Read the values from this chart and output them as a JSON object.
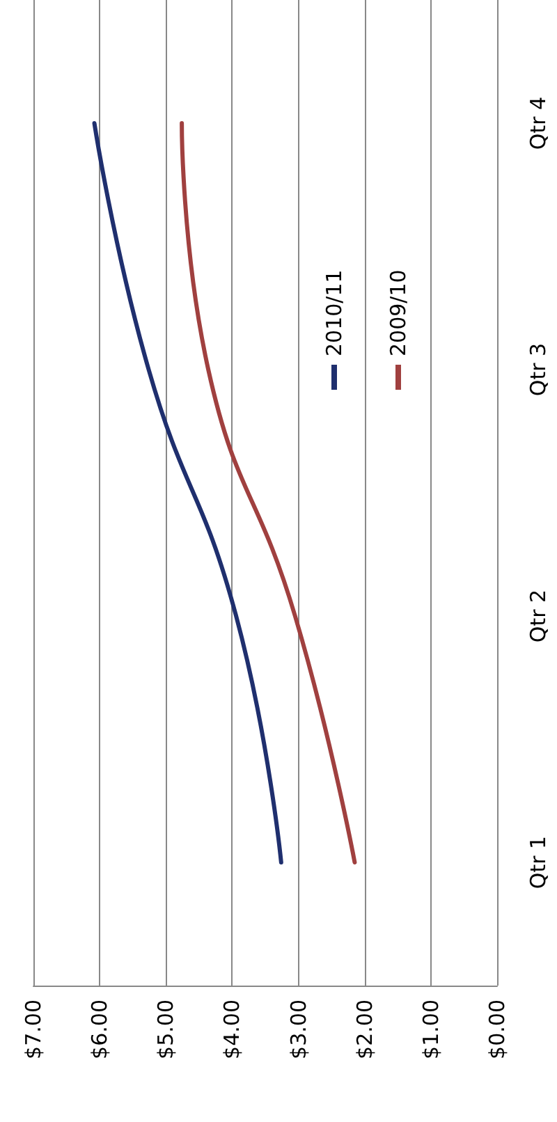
{
  "chart_data": {
    "type": "line",
    "orientation": "horizontal",
    "categories": [
      "Qtr 4",
      "Qtr 3",
      "Qtr 2",
      "Qtr 1"
    ],
    "series": [
      {
        "name": "2010/11",
        "color": "#1f2f6e",
        "values": [
          6.08,
          5.26,
          3.94,
          3.26
        ]
      },
      {
        "name": "2009/10",
        "color": "#a0403f",
        "values": [
          4.76,
          4.36,
          3.05,
          2.15
        ]
      }
    ],
    "xlim": [
      7,
      0
    ],
    "xticks": [
      {
        "value": 7,
        "label": "$7.00"
      },
      {
        "value": 6,
        "label": "$6.00"
      },
      {
        "value": 5,
        "label": "$5.00"
      },
      {
        "value": 4,
        "label": "$4.00"
      },
      {
        "value": 3,
        "label": "$3.00"
      },
      {
        "value": 2,
        "label": "$2.00"
      },
      {
        "value": 1,
        "label": "$1.00"
      },
      {
        "value": 0,
        "label": "$0.00"
      }
    ],
    "grid": "x",
    "legend": "right",
    "marker": "none",
    "line_style": "solid"
  }
}
